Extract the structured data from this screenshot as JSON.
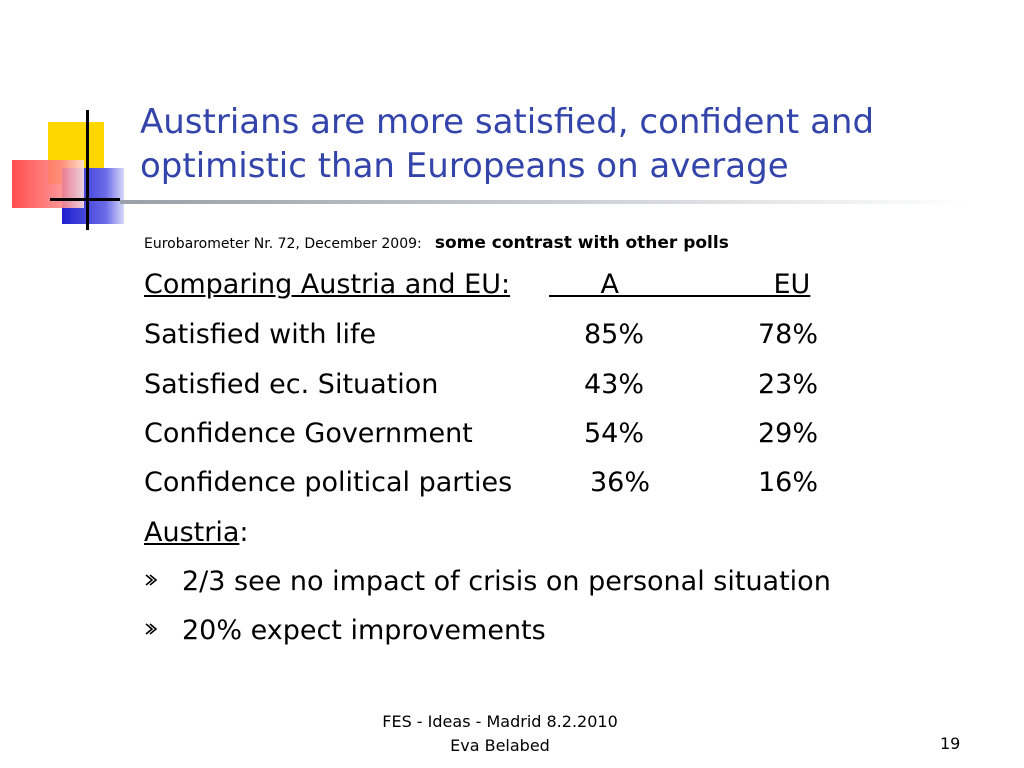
{
  "title": {
    "line1": "Austrians are more satisfied, confident and",
    "line2": "optimistic than Europeans on average"
  },
  "source": {
    "citation": "Eurobarometer Nr. 72, December 2009:",
    "note": "some contrast with other polls"
  },
  "table": {
    "header": {
      "label": "Comparing Austria and EU:",
      "col_a": "A",
      "col_eu": "EU"
    },
    "rows": [
      {
        "label": "Satisfied with life",
        "a": "85%",
        "eu": "78%"
      },
      {
        "label": "Satisfied ec. Situation",
        "a": "43%",
        "eu": "23%"
      },
      {
        "label": "Confidence Government",
        "a": "54%",
        "eu": "29%"
      },
      {
        "label": "Confidence political parties",
        "a": "36%",
        "eu": "16%"
      }
    ]
  },
  "austria": {
    "heading": "Austria",
    "colon": ":",
    "bullets": [
      "2/3 see no impact of crisis on personal situation",
      "20% expect improvements"
    ]
  },
  "footer": {
    "line1": "FES - Ideas - Madrid 8.2.2010",
    "line2": "Eva Belabed",
    "page": "19"
  },
  "colors": {
    "title": "#3344aa",
    "logo_yellow": "#ffd700",
    "logo_blue": "#2b2bd9",
    "logo_red": "#ff5a5a"
  }
}
